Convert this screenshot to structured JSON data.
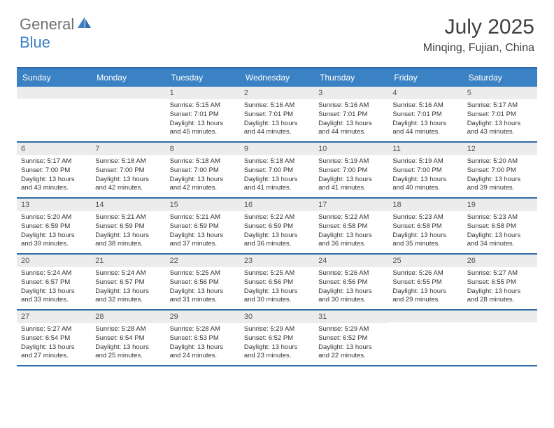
{
  "logo": {
    "general": "General",
    "blue": "Blue"
  },
  "title": "July 2025",
  "location": "Minqing, Fujian, China",
  "colors": {
    "header_bg": "#3b82c4",
    "border": "#2d6ca8",
    "daynum_bg": "#ececec",
    "text_gray": "#707070",
    "text_dark": "#404040"
  },
  "day_names": [
    "Sunday",
    "Monday",
    "Tuesday",
    "Wednesday",
    "Thursday",
    "Friday",
    "Saturday"
  ],
  "weeks": [
    [
      {
        "n": "",
        "lines": []
      },
      {
        "n": "",
        "lines": []
      },
      {
        "n": "1",
        "lines": [
          "Sunrise: 5:15 AM",
          "Sunset: 7:01 PM",
          "Daylight: 13 hours",
          "and 45 minutes."
        ]
      },
      {
        "n": "2",
        "lines": [
          "Sunrise: 5:16 AM",
          "Sunset: 7:01 PM",
          "Daylight: 13 hours",
          "and 44 minutes."
        ]
      },
      {
        "n": "3",
        "lines": [
          "Sunrise: 5:16 AM",
          "Sunset: 7:01 PM",
          "Daylight: 13 hours",
          "and 44 minutes."
        ]
      },
      {
        "n": "4",
        "lines": [
          "Sunrise: 5:16 AM",
          "Sunset: 7:01 PM",
          "Daylight: 13 hours",
          "and 44 minutes."
        ]
      },
      {
        "n": "5",
        "lines": [
          "Sunrise: 5:17 AM",
          "Sunset: 7:01 PM",
          "Daylight: 13 hours",
          "and 43 minutes."
        ]
      }
    ],
    [
      {
        "n": "6",
        "lines": [
          "Sunrise: 5:17 AM",
          "Sunset: 7:00 PM",
          "Daylight: 13 hours",
          "and 43 minutes."
        ]
      },
      {
        "n": "7",
        "lines": [
          "Sunrise: 5:18 AM",
          "Sunset: 7:00 PM",
          "Daylight: 13 hours",
          "and 42 minutes."
        ]
      },
      {
        "n": "8",
        "lines": [
          "Sunrise: 5:18 AM",
          "Sunset: 7:00 PM",
          "Daylight: 13 hours",
          "and 42 minutes."
        ]
      },
      {
        "n": "9",
        "lines": [
          "Sunrise: 5:18 AM",
          "Sunset: 7:00 PM",
          "Daylight: 13 hours",
          "and 41 minutes."
        ]
      },
      {
        "n": "10",
        "lines": [
          "Sunrise: 5:19 AM",
          "Sunset: 7:00 PM",
          "Daylight: 13 hours",
          "and 41 minutes."
        ]
      },
      {
        "n": "11",
        "lines": [
          "Sunrise: 5:19 AM",
          "Sunset: 7:00 PM",
          "Daylight: 13 hours",
          "and 40 minutes."
        ]
      },
      {
        "n": "12",
        "lines": [
          "Sunrise: 5:20 AM",
          "Sunset: 7:00 PM",
          "Daylight: 13 hours",
          "and 39 minutes."
        ]
      }
    ],
    [
      {
        "n": "13",
        "lines": [
          "Sunrise: 5:20 AM",
          "Sunset: 6:59 PM",
          "Daylight: 13 hours",
          "and 39 minutes."
        ]
      },
      {
        "n": "14",
        "lines": [
          "Sunrise: 5:21 AM",
          "Sunset: 6:59 PM",
          "Daylight: 13 hours",
          "and 38 minutes."
        ]
      },
      {
        "n": "15",
        "lines": [
          "Sunrise: 5:21 AM",
          "Sunset: 6:59 PM",
          "Daylight: 13 hours",
          "and 37 minutes."
        ]
      },
      {
        "n": "16",
        "lines": [
          "Sunrise: 5:22 AM",
          "Sunset: 6:59 PM",
          "Daylight: 13 hours",
          "and 36 minutes."
        ]
      },
      {
        "n": "17",
        "lines": [
          "Sunrise: 5:22 AM",
          "Sunset: 6:58 PM",
          "Daylight: 13 hours",
          "and 36 minutes."
        ]
      },
      {
        "n": "18",
        "lines": [
          "Sunrise: 5:23 AM",
          "Sunset: 6:58 PM",
          "Daylight: 13 hours",
          "and 35 minutes."
        ]
      },
      {
        "n": "19",
        "lines": [
          "Sunrise: 5:23 AM",
          "Sunset: 6:58 PM",
          "Daylight: 13 hours",
          "and 34 minutes."
        ]
      }
    ],
    [
      {
        "n": "20",
        "lines": [
          "Sunrise: 5:24 AM",
          "Sunset: 6:57 PM",
          "Daylight: 13 hours",
          "and 33 minutes."
        ]
      },
      {
        "n": "21",
        "lines": [
          "Sunrise: 5:24 AM",
          "Sunset: 6:57 PM",
          "Daylight: 13 hours",
          "and 32 minutes."
        ]
      },
      {
        "n": "22",
        "lines": [
          "Sunrise: 5:25 AM",
          "Sunset: 6:56 PM",
          "Daylight: 13 hours",
          "and 31 minutes."
        ]
      },
      {
        "n": "23",
        "lines": [
          "Sunrise: 5:25 AM",
          "Sunset: 6:56 PM",
          "Daylight: 13 hours",
          "and 30 minutes."
        ]
      },
      {
        "n": "24",
        "lines": [
          "Sunrise: 5:26 AM",
          "Sunset: 6:56 PM",
          "Daylight: 13 hours",
          "and 30 minutes."
        ]
      },
      {
        "n": "25",
        "lines": [
          "Sunrise: 5:26 AM",
          "Sunset: 6:55 PM",
          "Daylight: 13 hours",
          "and 29 minutes."
        ]
      },
      {
        "n": "26",
        "lines": [
          "Sunrise: 5:27 AM",
          "Sunset: 6:55 PM",
          "Daylight: 13 hours",
          "and 28 minutes."
        ]
      }
    ],
    [
      {
        "n": "27",
        "lines": [
          "Sunrise: 5:27 AM",
          "Sunset: 6:54 PM",
          "Daylight: 13 hours",
          "and 27 minutes."
        ]
      },
      {
        "n": "28",
        "lines": [
          "Sunrise: 5:28 AM",
          "Sunset: 6:54 PM",
          "Daylight: 13 hours",
          "and 25 minutes."
        ]
      },
      {
        "n": "29",
        "lines": [
          "Sunrise: 5:28 AM",
          "Sunset: 6:53 PM",
          "Daylight: 13 hours",
          "and 24 minutes."
        ]
      },
      {
        "n": "30",
        "lines": [
          "Sunrise: 5:29 AM",
          "Sunset: 6:52 PM",
          "Daylight: 13 hours",
          "and 23 minutes."
        ]
      },
      {
        "n": "31",
        "lines": [
          "Sunrise: 5:29 AM",
          "Sunset: 6:52 PM",
          "Daylight: 13 hours",
          "and 22 minutes."
        ]
      },
      {
        "n": "",
        "lines": []
      },
      {
        "n": "",
        "lines": []
      }
    ]
  ]
}
